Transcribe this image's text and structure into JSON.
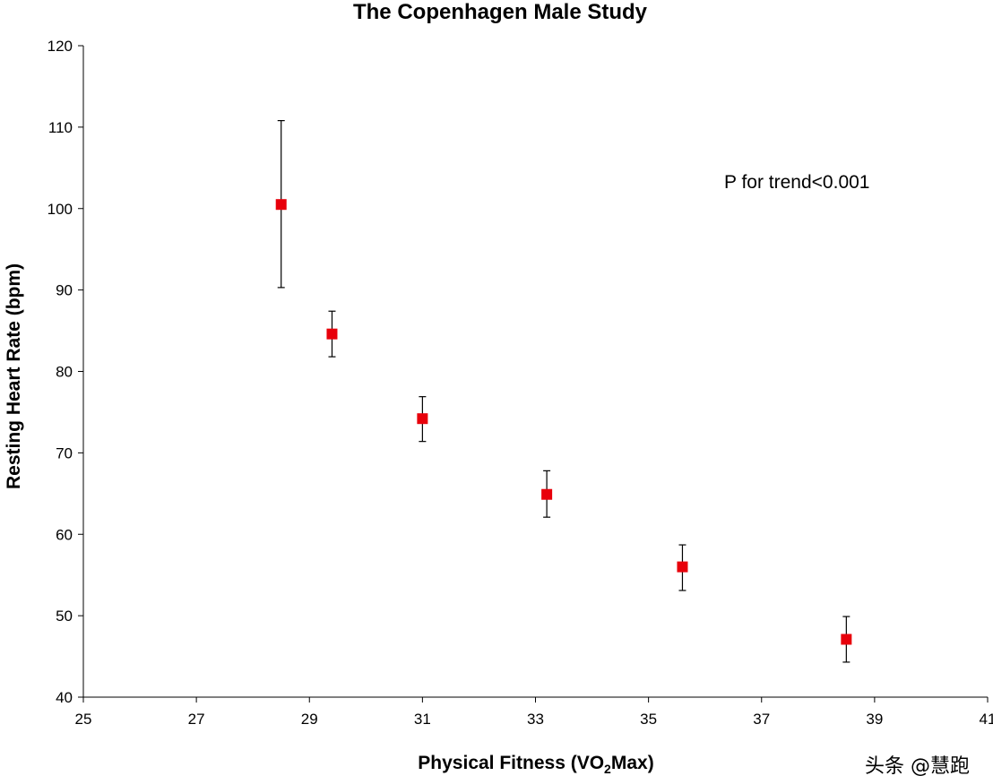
{
  "chart_data": {
    "type": "scatter",
    "title": "The Copenhagen Male Study",
    "xlabel_main": "Physical Fitness (VO",
    "xlabel_sub": "2",
    "xlabel_tail": "Max)",
    "ylabel": "Resting Heart Rate (bpm)",
    "xlim": [
      25,
      41
    ],
    "ylim": [
      40,
      120
    ],
    "x_ticks": [
      25,
      27,
      29,
      31,
      33,
      35,
      37,
      39,
      41
    ],
    "y_ticks": [
      40,
      50,
      60,
      70,
      80,
      90,
      100,
      110,
      120
    ],
    "points": [
      {
        "x": 28.5,
        "y": 100.5,
        "err_low": 90.3,
        "err_high": 110.8
      },
      {
        "x": 29.4,
        "y": 84.6,
        "err_low": 81.8,
        "err_high": 87.4
      },
      {
        "x": 31.0,
        "y": 74.2,
        "err_low": 71.4,
        "err_high": 76.9
      },
      {
        "x": 33.2,
        "y": 64.9,
        "err_low": 62.1,
        "err_high": 67.8
      },
      {
        "x": 35.6,
        "y": 56.0,
        "err_low": 53.1,
        "err_high": 58.7
      },
      {
        "x": 38.5,
        "y": 47.1,
        "err_low": 44.3,
        "err_high": 49.9
      }
    ],
    "marker_color": "#e8000b",
    "annotation": "P for trend<0.001",
    "grid": false
  },
  "watermark": "头条 @慧跑"
}
